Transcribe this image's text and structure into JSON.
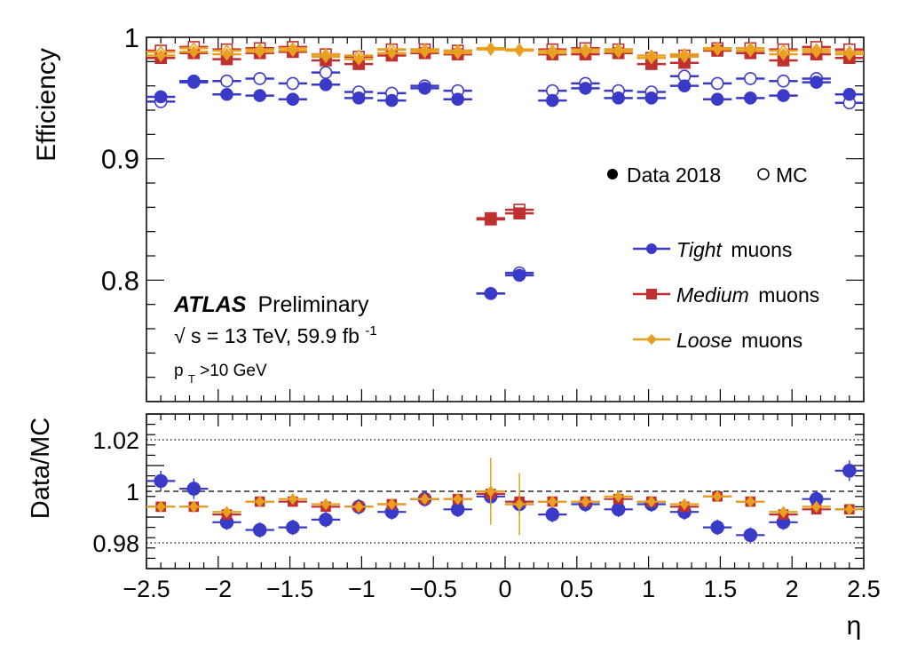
{
  "chart_data": [
    {
      "type": "scatter",
      "panel": "efficiency",
      "ylabel": "Efficiency",
      "ylim": [
        0.7,
        1.0
      ],
      "xlim": [
        -2.5,
        2.5
      ],
      "yticks": [
        "1",
        "0.9",
        "0.8"
      ],
      "annotations": {
        "atlas": "ATLAS",
        "preliminary": "Preliminary",
        "sqrt_symbol": "√",
        "energy": "s = 13 TeV, 59.9 fb",
        "energy_sup": "-1",
        "pt_p": "p",
        "pt_sub": "T",
        "pt_cut": ">10 GeV"
      },
      "legend": {
        "placement": "right",
        "data_label": "Data 2018",
        "mc_label": "MC",
        "tight_italic": "Tight",
        "medium_italic": "Medium",
        "loose_italic": "Loose",
        "muons_suffix": "muons"
      },
      "x_centers": [
        -2.4,
        -2.17,
        -1.94,
        -1.71,
        -1.48,
        -1.25,
        -1.02,
        -0.79,
        -0.56,
        -0.33,
        -0.1,
        0.1,
        0.33,
        0.56,
        0.79,
        1.02,
        1.25,
        1.48,
        1.71,
        1.94,
        2.17,
        2.4
      ],
      "x_halfwidth": 0.1,
      "series": [
        {
          "name": "Tight",
          "kind": "data",
          "color": "#3a3ac8",
          "marker": "circle",
          "values": [
            0.951,
            0.964,
            0.953,
            0.952,
            0.949,
            0.961,
            0.95,
            0.948,
            0.958,
            0.949,
            0.789,
            0.804,
            0.948,
            0.958,
            0.95,
            0.95,
            0.96,
            0.949,
            0.95,
            0.952,
            0.963,
            0.953
          ]
        },
        {
          "name": "Tight",
          "kind": "mc",
          "color": "#3a3ac8",
          "marker": "circle",
          "values": [
            0.947,
            0.963,
            0.964,
            0.966,
            0.962,
            0.971,
            0.955,
            0.954,
            0.96,
            0.956,
            0.789,
            0.806,
            0.956,
            0.962,
            0.956,
            0.955,
            0.968,
            0.962,
            0.966,
            0.964,
            0.966,
            0.946
          ]
        },
        {
          "name": "Medium",
          "kind": "data",
          "color": "#c03030",
          "marker": "square",
          "values": [
            0.983,
            0.987,
            0.982,
            0.987,
            0.988,
            0.981,
            0.978,
            0.985,
            0.987,
            0.986,
            0.85,
            0.855,
            0.986,
            0.986,
            0.987,
            0.978,
            0.979,
            0.989,
            0.987,
            0.981,
            0.986,
            0.983
          ]
        },
        {
          "name": "Medium",
          "kind": "mc",
          "color": "#c03030",
          "marker": "square",
          "values": [
            0.989,
            0.992,
            0.99,
            0.991,
            0.992,
            0.986,
            0.984,
            0.99,
            0.99,
            0.989,
            0.851,
            0.858,
            0.99,
            0.991,
            0.99,
            0.983,
            0.985,
            0.991,
            0.991,
            0.99,
            0.992,
            0.99
          ]
        },
        {
          "name": "Loose",
          "kind": "data",
          "color": "#e8a020",
          "marker": "diamond",
          "values": [
            0.985,
            0.988,
            0.986,
            0.988,
            0.989,
            0.984,
            0.982,
            0.987,
            0.988,
            0.987,
            0.99,
            0.989,
            0.987,
            0.988,
            0.988,
            0.983,
            0.984,
            0.99,
            0.989,
            0.986,
            0.988,
            0.986
          ]
        },
        {
          "name": "Loose",
          "kind": "mc",
          "color": "#e8a020",
          "marker": "diamond",
          "values": [
            0.988,
            0.991,
            0.989,
            0.99,
            0.991,
            0.986,
            0.985,
            0.99,
            0.99,
            0.989,
            0.991,
            0.99,
            0.989,
            0.99,
            0.99,
            0.985,
            0.986,
            0.991,
            0.991,
            0.989,
            0.99,
            0.988
          ]
        }
      ]
    },
    {
      "type": "scatter",
      "panel": "ratio",
      "ylabel": "Data/MC",
      "xlabel": "η",
      "ylim": [
        0.97,
        1.03
      ],
      "xlim": [
        -2.5,
        2.5
      ],
      "yticks": [
        "1.02",
        "1",
        "0.98"
      ],
      "xticks": [
        "−2.5",
        "−2",
        "−1.5",
        "−1",
        "−0.5",
        "0",
        "0.5",
        "1",
        "1.5",
        "2",
        "2.5"
      ],
      "x_centers": [
        -2.4,
        -2.17,
        -1.94,
        -1.71,
        -1.48,
        -1.25,
        -1.02,
        -0.79,
        -0.56,
        -0.33,
        -0.1,
        0.1,
        0.33,
        0.56,
        0.79,
        1.02,
        1.25,
        1.48,
        1.71,
        1.94,
        2.17,
        2.4
      ],
      "x_halfwidth": 0.1,
      "reference_lines": [
        1.02,
        1.0,
        0.98
      ],
      "series": [
        {
          "name": "Tight",
          "color": "#3a3ac8",
          "marker": "circle",
          "values": [
            1.004,
            1.001,
            0.988,
            0.985,
            0.986,
            0.989,
            0.994,
            0.992,
            0.997,
            0.993,
            0.998,
            0.995,
            0.991,
            0.995,
            0.993,
            0.995,
            0.992,
            0.986,
            0.983,
            0.988,
            0.997,
            1.008
          ],
          "errors": [
            0.004,
            0.004,
            0.003,
            0.003,
            0.003,
            0.003,
            0.003,
            0.003,
            0.003,
            0.003,
            0.004,
            0.004,
            0.003,
            0.003,
            0.003,
            0.003,
            0.003,
            0.003,
            0.003,
            0.003,
            0.003,
            0.004
          ]
        },
        {
          "name": "Medium",
          "color": "#c03030",
          "marker": "square",
          "values": [
            0.994,
            0.994,
            0.991,
            0.996,
            0.996,
            0.994,
            0.994,
            0.995,
            0.997,
            0.997,
            0.999,
            0.996,
            0.996,
            0.996,
            0.997,
            0.996,
            0.994,
            0.998,
            0.996,
            0.991,
            0.993,
            0.993
          ],
          "errors": [
            0.001,
            0.001,
            0.001,
            0.001,
            0.001,
            0.001,
            0.001,
            0.001,
            0.001,
            0.001,
            0.001,
            0.001,
            0.001,
            0.001,
            0.001,
            0.001,
            0.001,
            0.001,
            0.001,
            0.001,
            0.001,
            0.001
          ]
        },
        {
          "name": "Loose",
          "color": "#e8a020",
          "marker": "diamond",
          "values": [
            0.994,
            0.994,
            0.992,
            0.996,
            0.997,
            0.995,
            0.994,
            0.995,
            0.997,
            0.997,
            1.0,
            0.995,
            0.996,
            0.996,
            0.998,
            0.996,
            0.995,
            0.998,
            0.996,
            0.992,
            0.994,
            0.993
          ],
          "errors": [
            0.001,
            0.001,
            0.001,
            0.001,
            0.001,
            0.001,
            0.001,
            0.001,
            0.001,
            0.001,
            0.013,
            0.012,
            0.001,
            0.001,
            0.001,
            0.001,
            0.001,
            0.001,
            0.001,
            0.001,
            0.001,
            0.001
          ]
        }
      ]
    }
  ]
}
